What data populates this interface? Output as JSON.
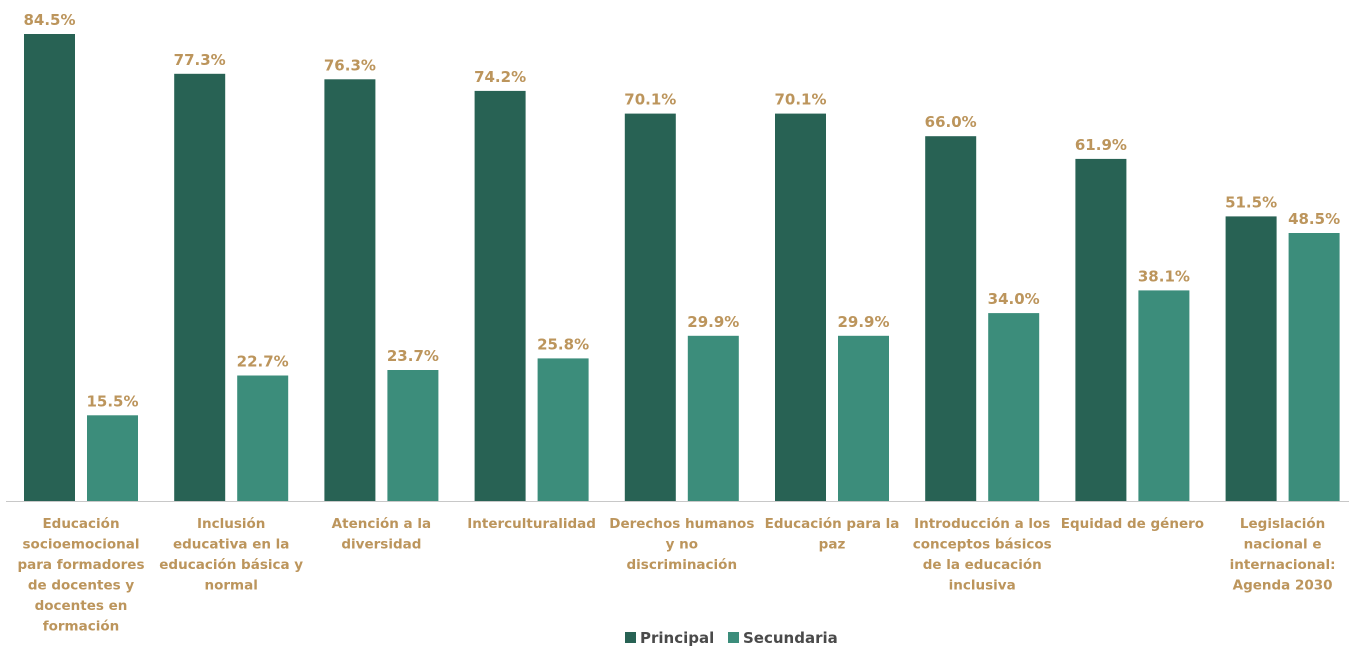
{
  "chart_data": {
    "type": "bar",
    "categories": [
      [
        "Educación",
        "socioemocional",
        "para formadores",
        "de docentes y",
        "docentes en",
        "formación"
      ],
      [
        "Inclusión",
        "educativa en la",
        "educación básica y",
        "normal"
      ],
      [
        "Atención a la",
        "diversidad"
      ],
      [
        "Interculturalidad"
      ],
      [
        "Derechos humanos",
        "y no",
        "discriminación"
      ],
      [
        "Educación para la",
        "paz"
      ],
      [
        "Introducción a los",
        "conceptos básicos",
        "de la educación",
        "inclusiva"
      ],
      [
        "Equidad de género"
      ],
      [
        "Legislación",
        "nacional e",
        "internacional:",
        "Agenda 2030"
      ]
    ],
    "series": [
      {
        "name": "Principal",
        "color": "#286254",
        "values": [
          84.5,
          77.3,
          76.3,
          74.2,
          70.1,
          70.1,
          66.0,
          61.9,
          51.5
        ],
        "labels": [
          "84.5%",
          "77.3%",
          "76.3%",
          "74.2%",
          "70.1%",
          "70.1%",
          "66.0%",
          "61.9%",
          "51.5%"
        ]
      },
      {
        "name": "Secundaria",
        "color": "#3c8d7b",
        "values": [
          15.5,
          22.7,
          23.7,
          25.8,
          29.9,
          29.9,
          34.0,
          38.1,
          48.5
        ],
        "labels": [
          "15.5%",
          "22.7%",
          "23.7%",
          "25.8%",
          "29.9%",
          "29.9%",
          "34.0%",
          "38.1%",
          "48.5%"
        ]
      }
    ],
    "ylim": [
      0,
      84.5
    ],
    "grid": false,
    "legend_position": "bottom-center",
    "label_color": "#bc955c",
    "axis_color": "#c8c8c8"
  }
}
